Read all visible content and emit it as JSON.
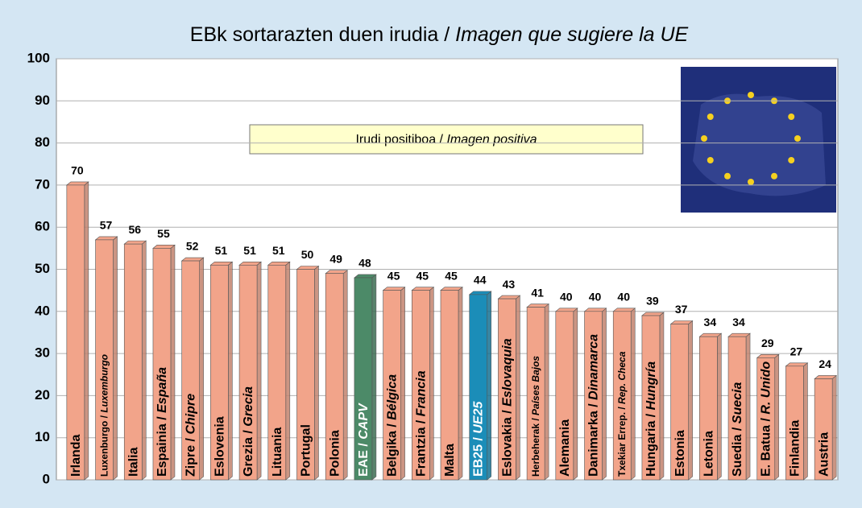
{
  "chart_data": {
    "type": "bar",
    "title": "EBk sortarazten duen irudia / Imagen que sugiere la UE",
    "annotation": "Irudi positiboa / Imagen positiva",
    "categories": [
      "Irlanda",
      "Luxenburgo / Luxemburgo",
      "Italia",
      "Espainia / España",
      "Zipre / Chipre",
      "Eslovenia",
      "Grezia / Grecia",
      "Lituania",
      "Portugal",
      "Polonia",
      "EAE / CAPV",
      "Belgika / Bélgica",
      "Frantzia / Francia",
      "Malta",
      "EB25 / UE25",
      "Eslovakia / Eslovaquia",
      "Herbeherak / Países Bajos",
      "Alemania",
      "Danimarka / Dinamarca",
      "Txekiar Errep. / Rep. Checa",
      "Hungaria / Hungría",
      "Estonia",
      "Letonia",
      "Suedia / Suecia",
      "E. Batua / R. Unido",
      "Finlandia",
      "Austria"
    ],
    "values": [
      70,
      57,
      56,
      55,
      52,
      51,
      51,
      51,
      50,
      49,
      48,
      45,
      45,
      45,
      44,
      43,
      41,
      40,
      40,
      40,
      39,
      37,
      34,
      34,
      29,
      27,
      24
    ],
    "colors": [
      "#f2a48a",
      "#f2a48a",
      "#f2a48a",
      "#f2a48a",
      "#f2a48a",
      "#f2a48a",
      "#f2a48a",
      "#f2a48a",
      "#f2a48a",
      "#f2a48a",
      "#4c8a68",
      "#f2a48a",
      "#f2a48a",
      "#f2a48a",
      "#1b8db8",
      "#f2a48a",
      "#f2a48a",
      "#f2a48a",
      "#f2a48a",
      "#f2a48a",
      "#f2a48a",
      "#f2a48a",
      "#f2a48a",
      "#f2a48a",
      "#f2a48a",
      "#f2a48a",
      "#f2a48a"
    ],
    "ylim": [
      0,
      100
    ],
    "yticks": [
      0,
      10,
      20,
      30,
      40,
      50,
      60,
      70,
      80,
      90,
      100
    ],
    "grid": true
  }
}
